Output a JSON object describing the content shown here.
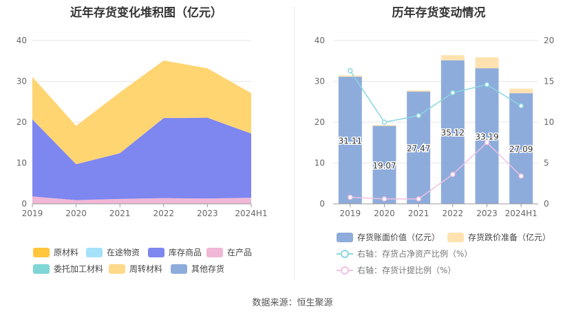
{
  "left_chart": {
    "title": "近年存货变化堆积图（亿元）",
    "chart_data": {
      "type": "area",
      "stacked": true,
      "categories": [
        "2019",
        "2020",
        "2021",
        "2022",
        "2023",
        "2024H1"
      ],
      "ylim": [
        0,
        40
      ],
      "yticks": [
        0,
        10,
        20,
        30,
        40
      ],
      "grid": true,
      "legend_position": "bottom",
      "series": [
        {
          "name": "原材料",
          "color": "#FFC53D",
          "values": [
            0,
            0,
            0,
            0,
            0,
            0
          ]
        },
        {
          "name": "在途物资",
          "color": "#A6E1FA",
          "values": [
            0,
            0,
            0,
            0,
            0,
            0
          ]
        },
        {
          "name": "库存商品",
          "color": "#7E86F0",
          "values": [
            18.9,
            8.8,
            11.2,
            19.6,
            19.8,
            15.7
          ]
        },
        {
          "name": "在产品",
          "color": "#F0B7D6",
          "values": [
            1.8,
            0.9,
            1.2,
            1.4,
            1.3,
            1.5
          ]
        },
        {
          "name": "委托加工材料",
          "color": "#7ED6D6",
          "values": [
            0,
            0,
            0,
            0,
            0,
            0
          ]
        },
        {
          "name": "周转材料",
          "color": "#FFD98A",
          "values": [
            0,
            0,
            0,
            0,
            0,
            0
          ]
        },
        {
          "name": "其他存货",
          "color": "#8EACDB",
          "values": [
            0,
            0,
            0,
            0,
            0,
            0
          ]
        },
        {
          "name": "",
          "color": "#FFD572",
          "values": [
            10.4,
            9.4,
            14.9,
            14.1,
            12.1,
            9.9
          ]
        }
      ]
    }
  },
  "right_chart": {
    "title": "历年存货变动情况",
    "chart_data": {
      "type": "bar",
      "categories": [
        "2019",
        "2020",
        "2021",
        "2022",
        "2023",
        "2024H1"
      ],
      "ylim": [
        0,
        40
      ],
      "yticks": [
        0,
        10,
        20,
        30,
        40
      ],
      "y2lim": [
        0,
        20
      ],
      "y2ticks": [
        0,
        5,
        10,
        15,
        20
      ],
      "grid": true,
      "legend_position": "bottom",
      "series": [
        {
          "name": "存货账面价值（亿元）",
          "type": "bar",
          "color": "#8EACDB",
          "values": [
            31.11,
            19.07,
            27.47,
            35.12,
            33.19,
            27.09
          ],
          "labels": [
            "31.11",
            "19.07",
            "27.47",
            "35.12",
            "33.19",
            "27.09"
          ]
        },
        {
          "name": "存货跌价准备（亿元）",
          "type": "bar",
          "color": "#FFE2B0",
          "values": [
            0.3,
            0.2,
            0.3,
            1.3,
            2.7,
            1.1
          ]
        },
        {
          "name": "右轴：存货占净资产比例（%）",
          "type": "line",
          "axis": "right",
          "color": "#8AD6E0",
          "values": [
            16.3,
            10.0,
            10.8,
            13.6,
            14.6,
            12.0
          ]
        },
        {
          "name": "右轴：存货计提比例（%）",
          "type": "line",
          "axis": "right",
          "color": "#EFC2E2",
          "values": [
            0.8,
            0.6,
            0.6,
            3.6,
            7.5,
            3.4
          ]
        }
      ]
    }
  },
  "footer": {
    "source": "数据来源：恒生聚源"
  }
}
